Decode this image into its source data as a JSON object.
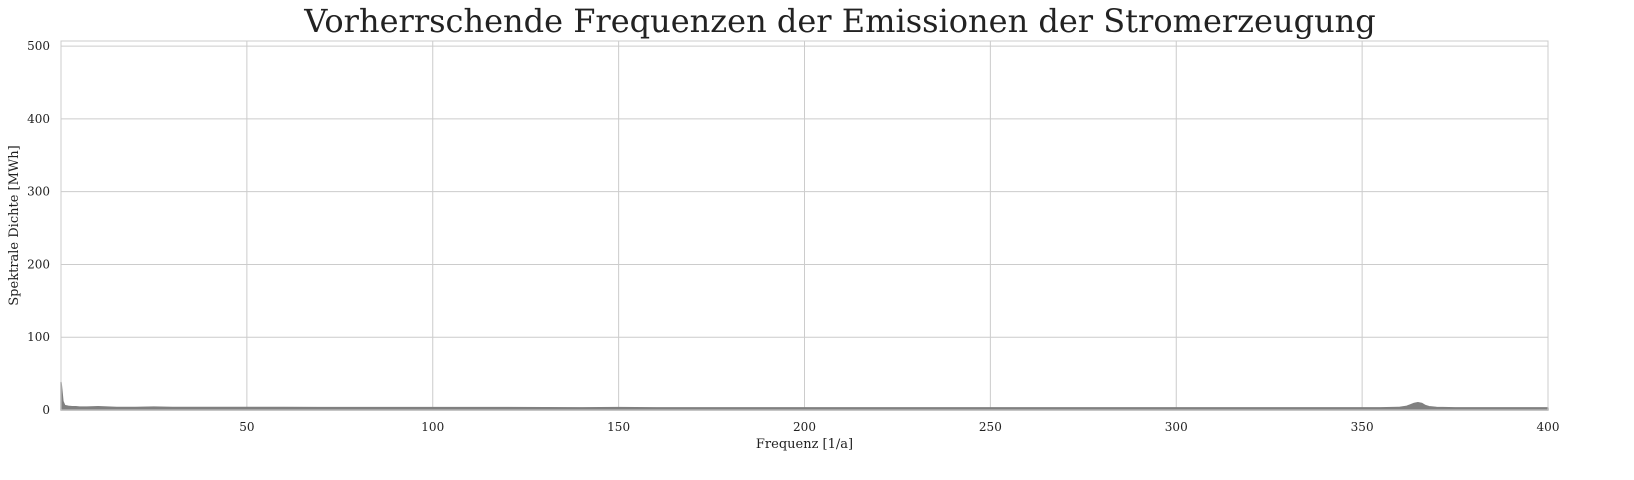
{
  "chart_data": {
    "type": "area",
    "title": "Vorherrschende Frequenzen der Emissionen der Stromerzeugung",
    "xlabel": "Frequenz [1/a]",
    "ylabel": "Spektrale Dichte [MWh]",
    "xlim": [
      0,
      400
    ],
    "ylim": [
      0,
      507
    ],
    "xticks": [
      50,
      100,
      150,
      200,
      250,
      300,
      350,
      400
    ],
    "yticks": [
      0,
      100,
      200,
      300,
      400,
      500
    ],
    "grid": true,
    "legend": "none",
    "fill_color": "#808080",
    "x": [
      0,
      0.5,
      1,
      2,
      3,
      4,
      5,
      7,
      10,
      15,
      20,
      25,
      30,
      40,
      50,
      60,
      70,
      80,
      90,
      100,
      120,
      140,
      150,
      160,
      180,
      200,
      220,
      240,
      260,
      280,
      300,
      320,
      340,
      355,
      360,
      362,
      363,
      364,
      365,
      366,
      367,
      368,
      370,
      375,
      380,
      390,
      400
    ],
    "y": [
      38,
      12,
      6,
      5,
      4.5,
      4.5,
      4,
      4,
      4.5,
      3.5,
      3.5,
      4,
      3.5,
      3.5,
      3.5,
      3.5,
      3.2,
      3.2,
      3.2,
      3.2,
      3.2,
      3,
      3.2,
      3,
      3,
      3,
      3,
      3,
      3,
      3,
      3,
      3,
      3,
      3,
      3.5,
      5,
      7,
      9,
      10,
      9,
      6,
      4.5,
      3.5,
      3,
      3,
      3,
      3
    ]
  }
}
